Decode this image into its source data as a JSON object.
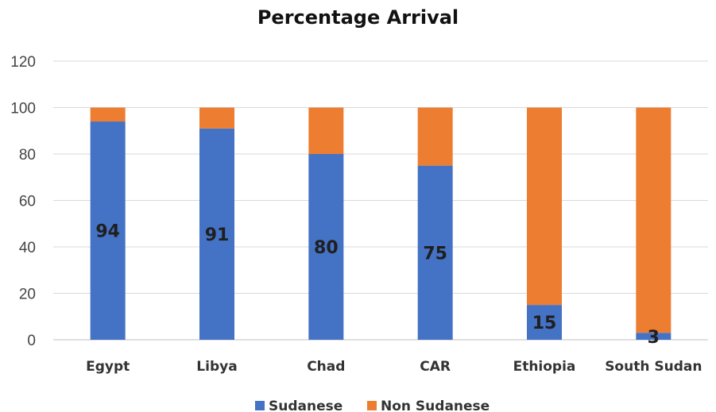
{
  "chart_data": {
    "type": "bar",
    "stacked": true,
    "title": "Percentage Arrival",
    "categories": [
      "Egypt",
      "Libya",
      "Chad",
      "CAR",
      "Ethiopia",
      "South Sudan"
    ],
    "series": [
      {
        "name": "Sudanese",
        "values": [
          94,
          91,
          80,
          75,
          15,
          3
        ],
        "color": "#4472C4"
      },
      {
        "name": "Non Sudanese",
        "values": [
          6,
          9,
          20,
          25,
          85,
          97
        ],
        "color": "#ED7D31"
      }
    ],
    "data_labels": [
      "94",
      "91",
      "80",
      "75",
      "15",
      "3"
    ],
    "yticks": [
      "0",
      "20",
      "40",
      "60",
      "80",
      "100",
      "120"
    ],
    "ylim": [
      0,
      120
    ],
    "grid": true,
    "legend_position": "bottom"
  }
}
